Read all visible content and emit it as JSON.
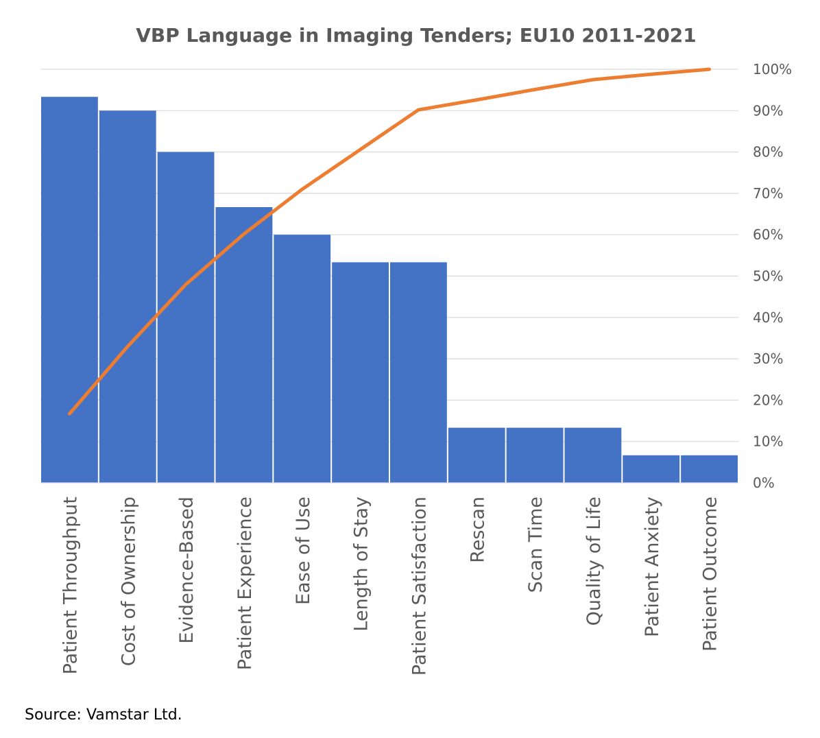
{
  "chart_data": {
    "type": "bar",
    "title": "VBP Language in Imaging Tenders; EU10 2011-2021",
    "categories": [
      "Patient Throughput",
      "Cost of Ownership",
      "Evidence-Based",
      "Patient Experience",
      "Ease of Use",
      "Length of Stay",
      "Patient Satisfaction",
      "Rescan",
      "Scan Time",
      "Quality of Life",
      "Patient Anxiety",
      "Patient Outcome"
    ],
    "series": [
      {
        "type": "bar",
        "values": [
          14,
          13.5,
          12,
          10,
          9,
          8,
          8,
          2,
          2,
          2,
          1,
          1
        ],
        "color": "#4472C4"
      },
      {
        "type": "line",
        "axis": "secondary",
        "values": [
          16.7,
          33,
          48,
          60.2,
          71,
          80.6,
          90.2,
          92.6,
          95.1,
          97.5,
          98.8,
          100
        ],
        "color": "#ED7D31"
      }
    ],
    "ylim": [
      0,
      15
    ],
    "secondary_axis": {
      "ylim": [
        0,
        100
      ],
      "ticks": [
        "0%",
        "10%",
        "20%",
        "30%",
        "40%",
        "50%",
        "60%",
        "70%",
        "80%",
        "90%",
        "100%"
      ]
    },
    "grid": true,
    "xlabel": "",
    "ylabel": ""
  },
  "source_text": "Source: Vamstar Ltd."
}
